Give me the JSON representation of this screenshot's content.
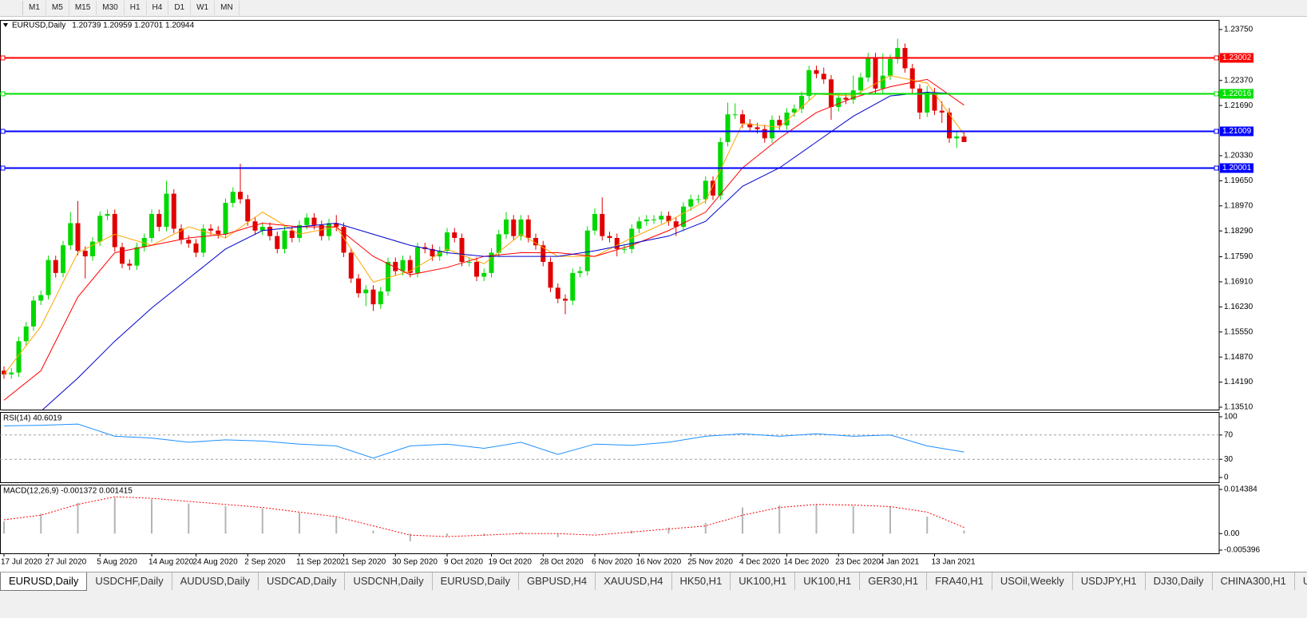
{
  "toolbar": [
    "M1",
    "M5",
    "M15",
    "M30",
    "H1",
    "H4",
    "D1",
    "W1",
    "MN"
  ],
  "tabs": [
    "EURUSD,Daily",
    "USDCHF,Daily",
    "AUDUSD,Daily",
    "USDCAD,Daily",
    "USDCNH,Daily",
    "EURUSD,Daily",
    "GBPUSD,H4",
    "XAUUSD,H4",
    "HK50,H1",
    "UK100,H1",
    "UK100,H1",
    "GER30,H1",
    "FRA40,H1",
    "USOil,Weekly",
    "USDJPY,H1",
    "DJ30,Daily",
    "CHINA300,H1",
    "USOil,..."
  ],
  "chart_data": [
    {
      "type": "candlestick",
      "title": "EURUSD,Daily",
      "subtitle": "1.20739 1.20959 1.20701 1.20944",
      "up_color": "#00d800",
      "down_color": "#e00000",
      "categories": [
        "17 Jul 2020",
        null,
        null,
        null,
        null,
        null,
        "27 Jul 2020",
        null,
        null,
        null,
        null,
        null,
        null,
        "5 Aug 2020",
        null,
        null,
        null,
        null,
        null,
        null,
        "14 Aug 2020",
        null,
        null,
        null,
        null,
        null,
        "24 Aug 2020",
        null,
        null,
        null,
        null,
        null,
        null,
        "2 Sep 2020",
        null,
        null,
        null,
        null,
        null,
        null,
        "11 Sep 2020",
        null,
        null,
        null,
        null,
        null,
        "21 Sep 2020",
        null,
        null,
        null,
        null,
        null,
        null,
        "30 Sep 2020",
        null,
        null,
        null,
        null,
        null,
        null,
        "9 Oct 2020",
        null,
        null,
        null,
        null,
        null,
        "19 Oct 2020",
        null,
        null,
        null,
        null,
        null,
        null,
        "28 Oct 2020",
        null,
        null,
        null,
        null,
        null,
        null,
        "6 Nov 2020",
        null,
        null,
        null,
        null,
        null,
        "16 Nov 2020",
        null,
        null,
        null,
        null,
        null,
        null,
        "25 Nov 2020",
        null,
        null,
        null,
        null,
        null,
        null,
        "4 Dec 2020",
        null,
        null,
        null,
        null,
        null,
        "14 Dec 2020",
        null,
        null,
        null,
        null,
        null,
        null,
        "23 Dec 2020",
        null,
        null,
        null,
        null,
        null,
        "4 Jan 2021",
        null,
        null,
        null,
        null,
        null,
        null,
        "13 Jan 2021",
        null,
        null,
        null,
        null
      ],
      "open": [
        1.145,
        1.144,
        1.1445,
        1.153,
        1.157,
        1.164,
        1.1655,
        1.175,
        1.1715,
        1.179,
        1.185,
        1.1775,
        1.176,
        1.18,
        1.187,
        1.1875,
        1.1785,
        1.174,
        1.1735,
        1.1785,
        1.181,
        1.1875,
        1.184,
        1.193,
        1.1835,
        1.1805,
        1.1795,
        1.177,
        1.1835,
        1.183,
        1.182,
        1.1905,
        1.1935,
        1.1915,
        1.1855,
        1.183,
        1.184,
        1.1815,
        1.178,
        1.183,
        1.181,
        1.1845,
        1.1865,
        1.1845,
        1.1815,
        1.185,
        1.184,
        1.177,
        1.17,
        1.166,
        1.167,
        1.163,
        1.1665,
        1.1745,
        1.172,
        1.175,
        1.1715,
        1.1785,
        1.178,
        1.176,
        1.1775,
        1.1825,
        1.181,
        1.1745,
        1.1745,
        1.1705,
        1.1715,
        1.177,
        1.182,
        1.186,
        1.1815,
        1.186,
        1.181,
        1.179,
        1.1745,
        1.1675,
        1.1645,
        1.164,
        1.1715,
        1.172,
        1.183,
        1.1875,
        1.1815,
        1.181,
        1.178,
        1.178,
        1.1835,
        1.1855,
        1.186,
        1.186,
        1.187,
        1.1855,
        1.184,
        1.1895,
        1.1915,
        1.1915,
        1.1965,
        1.1925,
        1.207,
        1.2145,
        1.2145,
        1.212,
        1.211,
        1.2105,
        1.208,
        1.213,
        1.2115,
        1.215,
        1.216,
        1.2195,
        1.2265,
        1.2255,
        1.224,
        1.2165,
        1.219,
        1.2185,
        1.221,
        1.2245,
        1.23,
        1.2215,
        1.225,
        1.2295,
        1.2325,
        1.227,
        1.2215,
        1.215,
        1.2205,
        1.2155,
        1.215,
        1.208,
        1.2085
      ],
      "high": [
        1.1462,
        1.1457,
        1.1542,
        1.1582,
        1.1652,
        1.1667,
        1.1762,
        1.1762,
        1.1802,
        1.188,
        1.191,
        1.1787,
        1.1812,
        1.1882,
        1.1887,
        1.1887,
        1.1797,
        1.1752,
        1.1797,
        1.1822,
        1.1887,
        1.1887,
        1.1965,
        1.1942,
        1.1847,
        1.1817,
        1.1807,
        1.1847,
        1.1847,
        1.1842,
        1.1917,
        1.1947,
        1.2011,
        1.1927,
        1.1867,
        1.1852,
        1.1852,
        1.1827,
        1.1842,
        1.1842,
        1.1857,
        1.1877,
        1.1877,
        1.1857,
        1.1862,
        1.1872,
        1.1852,
        1.1782,
        1.1712,
        1.1682,
        1.1682,
        1.1677,
        1.1757,
        1.1757,
        1.1762,
        1.1762,
        1.1797,
        1.1797,
        1.1792,
        1.1787,
        1.1837,
        1.1837,
        1.1822,
        1.1757,
        1.1757,
        1.1727,
        1.1782,
        1.1832,
        1.188,
        1.1872,
        1.1872,
        1.1872,
        1.1822,
        1.1802,
        1.1757,
        1.1687,
        1.1657,
        1.1727,
        1.1732,
        1.1842,
        1.189,
        1.192,
        1.1827,
        1.1822,
        1.1792,
        1.1847,
        1.1867,
        1.1872,
        1.1872,
        1.1882,
        1.1882,
        1.1867,
        1.1907,
        1.1927,
        1.1927,
        1.1977,
        1.1977,
        1.2082,
        1.2177,
        1.2175,
        1.2157,
        1.2132,
        1.2122,
        1.2117,
        1.2142,
        1.2142,
        1.2162,
        1.2172,
        1.2207,
        1.2277,
        1.2277,
        1.2272,
        1.2252,
        1.2202,
        1.2202,
        1.225,
        1.2257,
        1.2312,
        1.2312,
        1.231,
        1.2307,
        1.235,
        1.2337,
        1.2282,
        1.2227,
        1.2222,
        1.2217,
        1.218,
        1.2162,
        1.2097,
        1.2096
      ],
      "low": [
        1.1428,
        1.1428,
        1.1433,
        1.1518,
        1.1558,
        1.1628,
        1.1643,
        1.1703,
        1.1703,
        1.1778,
        1.1763,
        1.17,
        1.1748,
        1.1788,
        1.1858,
        1.1773,
        1.1728,
        1.1723,
        1.1723,
        1.1773,
        1.1798,
        1.1828,
        1.1828,
        1.1823,
        1.1793,
        1.1783,
        1.1758,
        1.1758,
        1.1818,
        1.1808,
        1.1808,
        1.1893,
        1.1903,
        1.1843,
        1.1818,
        1.1818,
        1.1803,
        1.1768,
        1.1768,
        1.1798,
        1.1798,
        1.1833,
        1.1833,
        1.1803,
        1.1803,
        1.1828,
        1.1758,
        1.1688,
        1.1648,
        1.1625,
        1.1612,
        1.1618,
        1.1653,
        1.1708,
        1.1708,
        1.1703,
        1.1703,
        1.1768,
        1.1748,
        1.1748,
        1.1763,
        1.1798,
        1.1733,
        1.1733,
        1.1693,
        1.1693,
        1.1703,
        1.1758,
        1.1808,
        1.1803,
        1.1803,
        1.1798,
        1.1778,
        1.1733,
        1.1663,
        1.1633,
        1.1603,
        1.1628,
        1.1703,
        1.1708,
        1.1818,
        1.1803,
        1.1798,
        1.176,
        1.1768,
        1.1768,
        1.1823,
        1.1843,
        1.1848,
        1.1848,
        1.1843,
        1.1815,
        1.1828,
        1.1883,
        1.1903,
        1.1903,
        1.1913,
        1.1913,
        1.2058,
        1.2133,
        1.2108,
        1.2098,
        1.2093,
        1.2068,
        1.2068,
        1.2103,
        1.2103,
        1.2138,
        1.2148,
        1.2183,
        1.2243,
        1.2228,
        1.213,
        1.2153,
        1.2173,
        1.2173,
        1.2198,
        1.2233,
        1.2203,
        1.2203,
        1.2238,
        1.2283,
        1.2258,
        1.2203,
        1.2132,
        1.2138,
        1.2143,
        1.2122,
        1.2068,
        1.2054,
        1.207
      ],
      "close": [
        1.144,
        1.1445,
        1.153,
        1.157,
        1.164,
        1.1655,
        1.175,
        1.1715,
        1.179,
        1.185,
        1.1775,
        1.176,
        1.18,
        1.187,
        1.1875,
        1.1785,
        1.174,
        1.1735,
        1.1785,
        1.181,
        1.1875,
        1.184,
        1.193,
        1.1835,
        1.1805,
        1.1795,
        1.177,
        1.1835,
        1.183,
        1.182,
        1.1905,
        1.1935,
        1.1915,
        1.1855,
        1.183,
        1.184,
        1.1815,
        1.178,
        1.183,
        1.181,
        1.1845,
        1.1865,
        1.1845,
        1.1815,
        1.185,
        1.184,
        1.177,
        1.17,
        1.166,
        1.167,
        1.163,
        1.1665,
        1.1745,
        1.172,
        1.175,
        1.1715,
        1.1785,
        1.178,
        1.176,
        1.1775,
        1.1825,
        1.181,
        1.1745,
        1.1745,
        1.1705,
        1.1715,
        1.177,
        1.182,
        1.186,
        1.1815,
        1.186,
        1.181,
        1.179,
        1.1745,
        1.1675,
        1.1645,
        1.164,
        1.1715,
        1.172,
        1.183,
        1.1875,
        1.1815,
        1.181,
        1.178,
        1.178,
        1.1835,
        1.1855,
        1.186,
        1.186,
        1.187,
        1.1855,
        1.184,
        1.1895,
        1.1915,
        1.1915,
        1.1965,
        1.1925,
        1.207,
        1.2145,
        1.2145,
        1.212,
        1.211,
        1.2105,
        1.208,
        1.213,
        1.2115,
        1.215,
        1.216,
        1.2195,
        1.2265,
        1.2255,
        1.224,
        1.2165,
        1.219,
        1.2185,
        1.221,
        1.2245,
        1.23,
        1.2215,
        1.225,
        1.2295,
        1.2325,
        1.227,
        1.2215,
        1.215,
        1.2205,
        1.2155,
        1.215,
        1.208,
        1.2085,
        1.207
      ],
      "series": [
        {
          "color": "#ffa500",
          "x": [
            0,
            5,
            10,
            15,
            20,
            25,
            30,
            35,
            40,
            45,
            50,
            55,
            60,
            65,
            70,
            75,
            80,
            85,
            90,
            95,
            100,
            105,
            110,
            115,
            120,
            125,
            130
          ],
          "values": [
            1.144,
            1.157,
            1.177,
            1.182,
            1.179,
            1.184,
            1.181,
            1.188,
            1.182,
            1.184,
            1.169,
            1.172,
            1.178,
            1.174,
            1.182,
            1.176,
            1.176,
            1.181,
            1.1855,
            1.191,
            1.212,
            1.211,
            1.22,
            1.2195,
            1.225,
            1.223,
            1.209
          ]
        },
        {
          "color": "#ff0000",
          "x": [
            0,
            5,
            10,
            15,
            20,
            25,
            30,
            35,
            40,
            45,
            50,
            55,
            60,
            65,
            70,
            75,
            80,
            85,
            90,
            95,
            100,
            105,
            110,
            115,
            120,
            125,
            130
          ],
          "values": [
            1.137,
            1.145,
            1.165,
            1.177,
            1.179,
            1.181,
            1.182,
            1.185,
            1.184,
            1.184,
            1.176,
            1.171,
            1.173,
            1.176,
            1.177,
            1.177,
            1.176,
            1.179,
            1.183,
            1.188,
            1.2,
            1.208,
            1.215,
            1.219,
            1.222,
            1.224,
            1.217
          ]
        },
        {
          "color": "#0000cd",
          "x": [
            0,
            5,
            10,
            15,
            20,
            25,
            30,
            35,
            40,
            45,
            50,
            55,
            60,
            65,
            70,
            75,
            80,
            85,
            90,
            95,
            100,
            105,
            110,
            115,
            120,
            125,
            130
          ],
          "values": [
            1.13,
            1.134,
            1.143,
            1.153,
            1.162,
            1.17,
            1.178,
            1.183,
            1.184,
            1.185,
            1.182,
            1.179,
            1.177,
            1.176,
            1.176,
            1.176,
            1.1775,
            1.1795,
            1.1815,
            1.1855,
            1.195,
            1.2,
            1.207,
            1.214,
            1.2195,
            1.2205,
            1.22
          ]
        }
      ],
      "levels": [
        {
          "value": 1.23002,
          "color": "#ff0000"
        },
        {
          "value": 1.22016,
          "color": "#00e000"
        },
        {
          "value": 1.21009,
          "color": "#0000ff"
        },
        {
          "value": 1.20001,
          "color": "#0000ff"
        }
      ],
      "ylim": [
        1.13445,
        1.2401
      ],
      "yticks": [
        {
          "value": 1.2375,
          "label": "1.23750"
        },
        {
          "value": 1.2237,
          "label": "1.22370"
        },
        {
          "value": 1.2169,
          "label": "1.21690"
        },
        {
          "value": 1.2033,
          "label": "1.20330"
        },
        {
          "value": 1.1965,
          "label": "1.19650"
        },
        {
          "value": 1.1897,
          "label": "1.18970"
        },
        {
          "value": 1.1829,
          "label": "1.18290"
        },
        {
          "value": 1.1759,
          "label": "1.17590"
        },
        {
          "value": 1.1691,
          "label": "1.16910"
        },
        {
          "value": 1.1623,
          "label": "1.16230"
        },
        {
          "value": 1.1555,
          "label": "1.15550"
        },
        {
          "value": 1.1487,
          "label": "1.14870"
        },
        {
          "value": 1.1419,
          "label": "1.14190"
        },
        {
          "value": 1.1351,
          "label": "1.13510"
        }
      ]
    },
    {
      "type": "line",
      "title": "RSI(14) 40.6019",
      "color": "#1e90ff",
      "x": [
        0,
        5,
        10,
        15,
        20,
        25,
        30,
        35,
        40,
        45,
        50,
        55,
        60,
        65,
        70,
        75,
        80,
        85,
        90,
        95,
        100,
        105,
        110,
        115,
        120,
        125,
        130
      ],
      "values": [
        85,
        86,
        88,
        68,
        65,
        58,
        62,
        60,
        55,
        52,
        32,
        52,
        55,
        48,
        58,
        38,
        55,
        53,
        58,
        68,
        72,
        68,
        72,
        68,
        70,
        52,
        42
      ],
      "ylim": [
        -7.9,
        107.9
      ],
      "yticks": [
        100,
        70,
        30,
        0
      ]
    },
    {
      "type": "bar",
      "title": "MACD(12,26,9) -0.001372 0.001415",
      "x": [
        0,
        5,
        10,
        15,
        20,
        25,
        30,
        35,
        40,
        45,
        50,
        55,
        60,
        65,
        70,
        75,
        80,
        85,
        90,
        95,
        100,
        105,
        110,
        115,
        120,
        125,
        130
      ],
      "series": [
        {
          "color": "#b4b4b4",
          "values": [
            0.004,
            0.0065,
            0.01,
            0.0118,
            0.0112,
            0.0098,
            0.009,
            0.0082,
            0.0068,
            0.0055,
            0.001,
            -0.0025,
            -0.0008,
            -0.0008,
            0.0005,
            -0.0012,
            0.0002,
            0.001,
            0.002,
            0.0035,
            0.0085,
            0.0092,
            0.0095,
            0.009,
            0.0088,
            0.0055,
            0.001
          ]
        },
        {
          "color": "#ff0000",
          "values": [
            0.0045,
            0.006,
            0.0095,
            0.012,
            0.0115,
            0.0105,
            0.0095,
            0.0085,
            0.007,
            0.0055,
            0.0025,
            -0.0005,
            -0.001,
            -0.0005,
            0.0,
            0.0,
            -0.0005,
            0.0005,
            0.0015,
            0.0025,
            0.006,
            0.0085,
            0.0095,
            0.0093,
            0.0088,
            0.007,
            0.002
          ]
        }
      ],
      "ylim": [
        -0.006437,
        0.015946
      ],
      "yticks": [
        0.014384,
        {
          "value": 0,
          "label": "0.00"
        },
        -0.005396
      ]
    }
  ]
}
